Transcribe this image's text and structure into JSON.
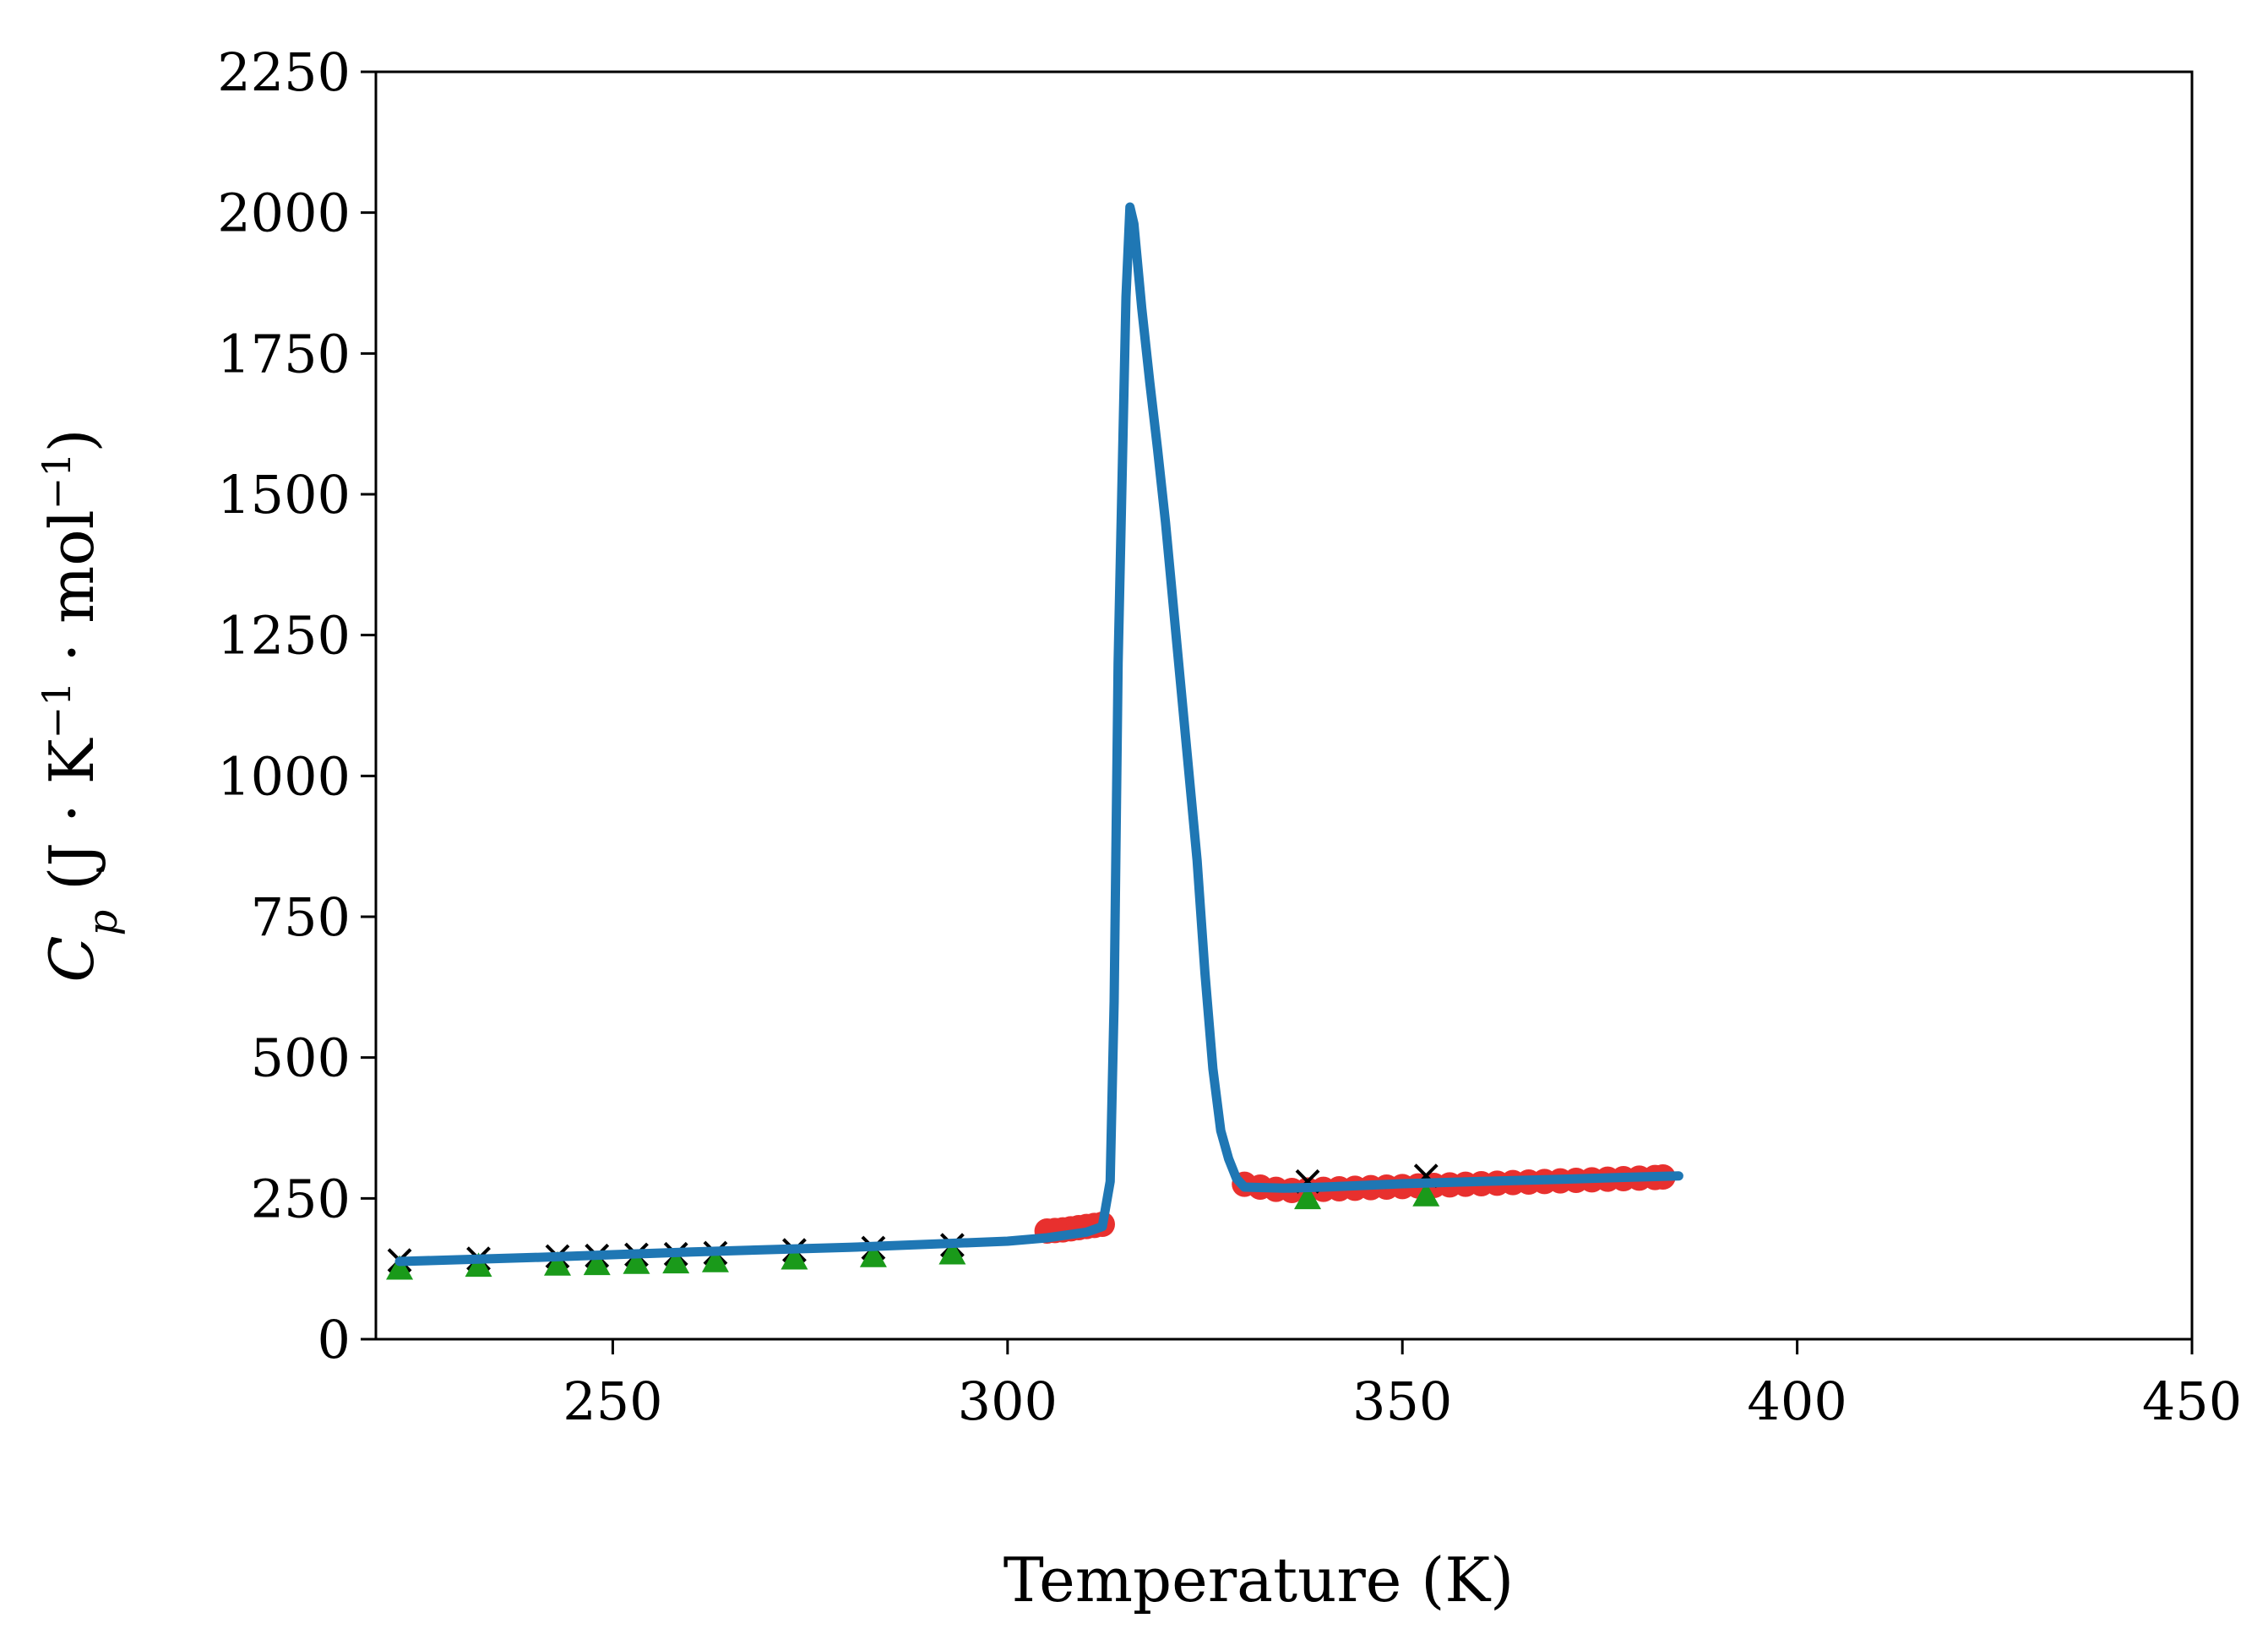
{
  "chart_data": {
    "type": "scatter",
    "title": "",
    "xlabel": "Temperature (K)",
    "ylabel": {
      "symbol": "C",
      "subscript": "p",
      "units_open": " (J · K",
      "sup1": "−1",
      "units_mid": " · mol",
      "sup2": "−1",
      "units_close": ")"
    },
    "xlim": [
      220,
      450
    ],
    "ylim": [
      0,
      2250
    ],
    "xticks": [
      250,
      300,
      350,
      400,
      450
    ],
    "yticks": [
      0,
      250,
      500,
      750,
      1000,
      1250,
      1500,
      1750,
      2000,
      2250
    ],
    "grid": false,
    "colors": {
      "line": "#1f77b4",
      "circles": "#e8302e",
      "triangles": "#1a9a1a",
      "crosses": "#000000"
    },
    "series": [
      {
        "marker": "circle",
        "color": "#e8302e",
        "x": [
          305,
          306,
          307,
          308,
          309,
          310,
          311,
          312,
          330,
          332,
          334,
          336,
          338,
          340,
          342,
          344,
          346,
          348,
          350,
          352,
          354,
          356,
          358,
          360,
          362,
          364,
          366,
          368,
          370,
          372,
          374,
          376,
          378,
          380,
          382,
          383
        ],
        "y": [
          192,
          193,
          194,
          196,
          198,
          200,
          202,
          204,
          275,
          270,
          266,
          264,
          265,
          266,
          267,
          268,
          269,
          270,
          271,
          272,
          273,
          274,
          275,
          276,
          277,
          278,
          279,
          280,
          281,
          282,
          283,
          284,
          285,
          286,
          287,
          288
        ]
      },
      {
        "marker": "triangle",
        "color": "#1a9a1a",
        "x": [
          223,
          233,
          243,
          248,
          253,
          258,
          263,
          273,
          283,
          293,
          338,
          353
        ],
        "y": [
          125,
          130,
          132,
          133,
          135,
          136,
          138,
          143,
          147,
          152,
          250,
          255
        ]
      },
      {
        "marker": "cross",
        "color": "#000000",
        "x": [
          223,
          233,
          243,
          248,
          253,
          258,
          263,
          273,
          283,
          293,
          338,
          353
        ],
        "y": [
          140,
          143,
          147,
          148,
          150,
          151,
          153,
          158,
          162,
          167,
          280,
          290
        ]
      },
      {
        "marker": "line",
        "color": "#1f77b4",
        "x": [
          223,
          240,
          260,
          280,
          300,
          305,
          310,
          312,
          313,
          313.5,
          314,
          315,
          315.5,
          316,
          317,
          318,
          319,
          320,
          322,
          324,
          325,
          326,
          327,
          328,
          329,
          330,
          335,
          340,
          350,
          360,
          370,
          380,
          385
        ],
        "y": [
          138,
          145,
          155,
          163,
          174,
          180,
          190,
          200,
          280,
          600,
          1200,
          1850,
          2010,
          1980,
          1830,
          1700,
          1580,
          1450,
          1150,
          850,
          650,
          480,
          370,
          320,
          285,
          270,
          268,
          270,
          276,
          280,
          284,
          288,
          290
        ]
      }
    ]
  }
}
